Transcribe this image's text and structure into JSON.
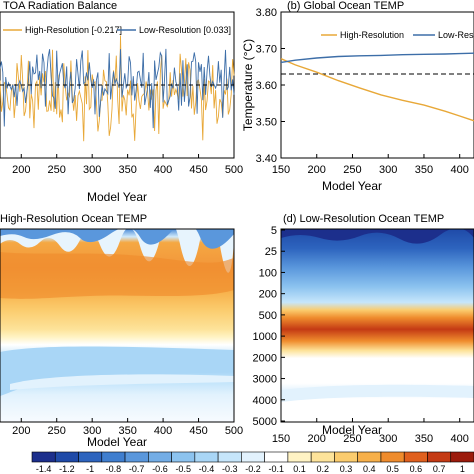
{
  "colors": {
    "high_res": "#e8a838",
    "low_res": "#3d6ea8",
    "dashed": "#000000"
  },
  "colorbar": {
    "labels": [
      "-1.4",
      "-1.2",
      "-1",
      "-0.8",
      "-0.7",
      "-0.6",
      "-0.5",
      "-0.4",
      "-0.3",
      "-0.2",
      "-0.1",
      "0.1",
      "0.2",
      "0.3",
      "0.4",
      "0.5",
      "0.6",
      "0.7",
      "1"
    ],
    "colors": [
      "#1c2f8c",
      "#1f4aa8",
      "#2d64be",
      "#3f7ecf",
      "#5a97dc",
      "#73ade6",
      "#8cc3ef",
      "#a9d6f6",
      "#c6e6fb",
      "#e2f2fd",
      "#ffffff",
      "#fff3c4",
      "#fde39a",
      "#fbcc6e",
      "#f7b04a",
      "#ef8c2d",
      "#e0601e",
      "#c43a14",
      "#9c1b0c"
    ]
  },
  "chart_data": [
    {
      "id": "a",
      "type": "line",
      "title": "TOA Radiation Balance",
      "xlabel": "Model Year",
      "xticks": [
        "200",
        "250",
        "300",
        "350",
        "400",
        "450",
        "500"
      ],
      "xlim": [
        170,
        500
      ],
      "ylim": [
        -1.6,
        1.6
      ],
      "series": [
        {
          "name": "High-Resolution [-0.217]",
          "mean": -0.217,
          "stdev": 0.45,
          "seed": 11
        },
        {
          "name": "Low-Resolution [0.033]",
          "mean": 0.033,
          "stdev": 0.38,
          "seed": 29
        }
      ],
      "reference": 0.0
    },
    {
      "id": "b",
      "type": "line",
      "title": "(b) Global Ocean TEMP",
      "xlabel": "Model Year",
      "ylabel": "Temperature (°C)",
      "xticks": [
        "150",
        "200",
        "250",
        "300",
        "350",
        "400"
      ],
      "yticks": [
        "3.40",
        "3.50",
        "3.60",
        "3.70",
        "3.80"
      ],
      "xlim": [
        150,
        420
      ],
      "ylim": [
        3.4,
        3.8
      ],
      "reference": 3.63,
      "series": [
        {
          "name": "High-Resolution",
          "x": [
            150,
            170,
            200,
            230,
            260,
            290,
            320,
            350,
            380,
            400,
            420
          ],
          "values": [
            3.672,
            3.655,
            3.635,
            3.612,
            3.592,
            3.573,
            3.558,
            3.545,
            3.528,
            3.515,
            3.502
          ]
        },
        {
          "name": "Low-Resolution",
          "x": [
            150,
            170,
            200,
            230,
            260,
            290,
            320,
            350,
            380,
            400,
            420
          ],
          "values": [
            3.662,
            3.668,
            3.674,
            3.678,
            3.68,
            3.681,
            3.683,
            3.684,
            3.685,
            3.686,
            3.687
          ]
        }
      ]
    },
    {
      "id": "c",
      "type": "heatmap",
      "title": "High-Resolution Ocean TEMP",
      "xlabel": "Model Year",
      "xticks": [
        "200",
        "250",
        "300",
        "350",
        "400",
        "450",
        "500"
      ],
      "xlim": [
        170,
        500
      ]
    },
    {
      "id": "d",
      "type": "heatmap",
      "title": "(d) Low-Resolution Ocean TEMP",
      "xlabel": "Model Year",
      "xticks": [
        "150",
        "200",
        "250",
        "300",
        "350",
        "400"
      ],
      "yticks": [
        "5",
        "25",
        "100",
        "200",
        "500",
        "1000",
        "2000",
        "3000",
        "4000",
        "5000"
      ],
      "xlim": [
        150,
        420
      ]
    }
  ]
}
